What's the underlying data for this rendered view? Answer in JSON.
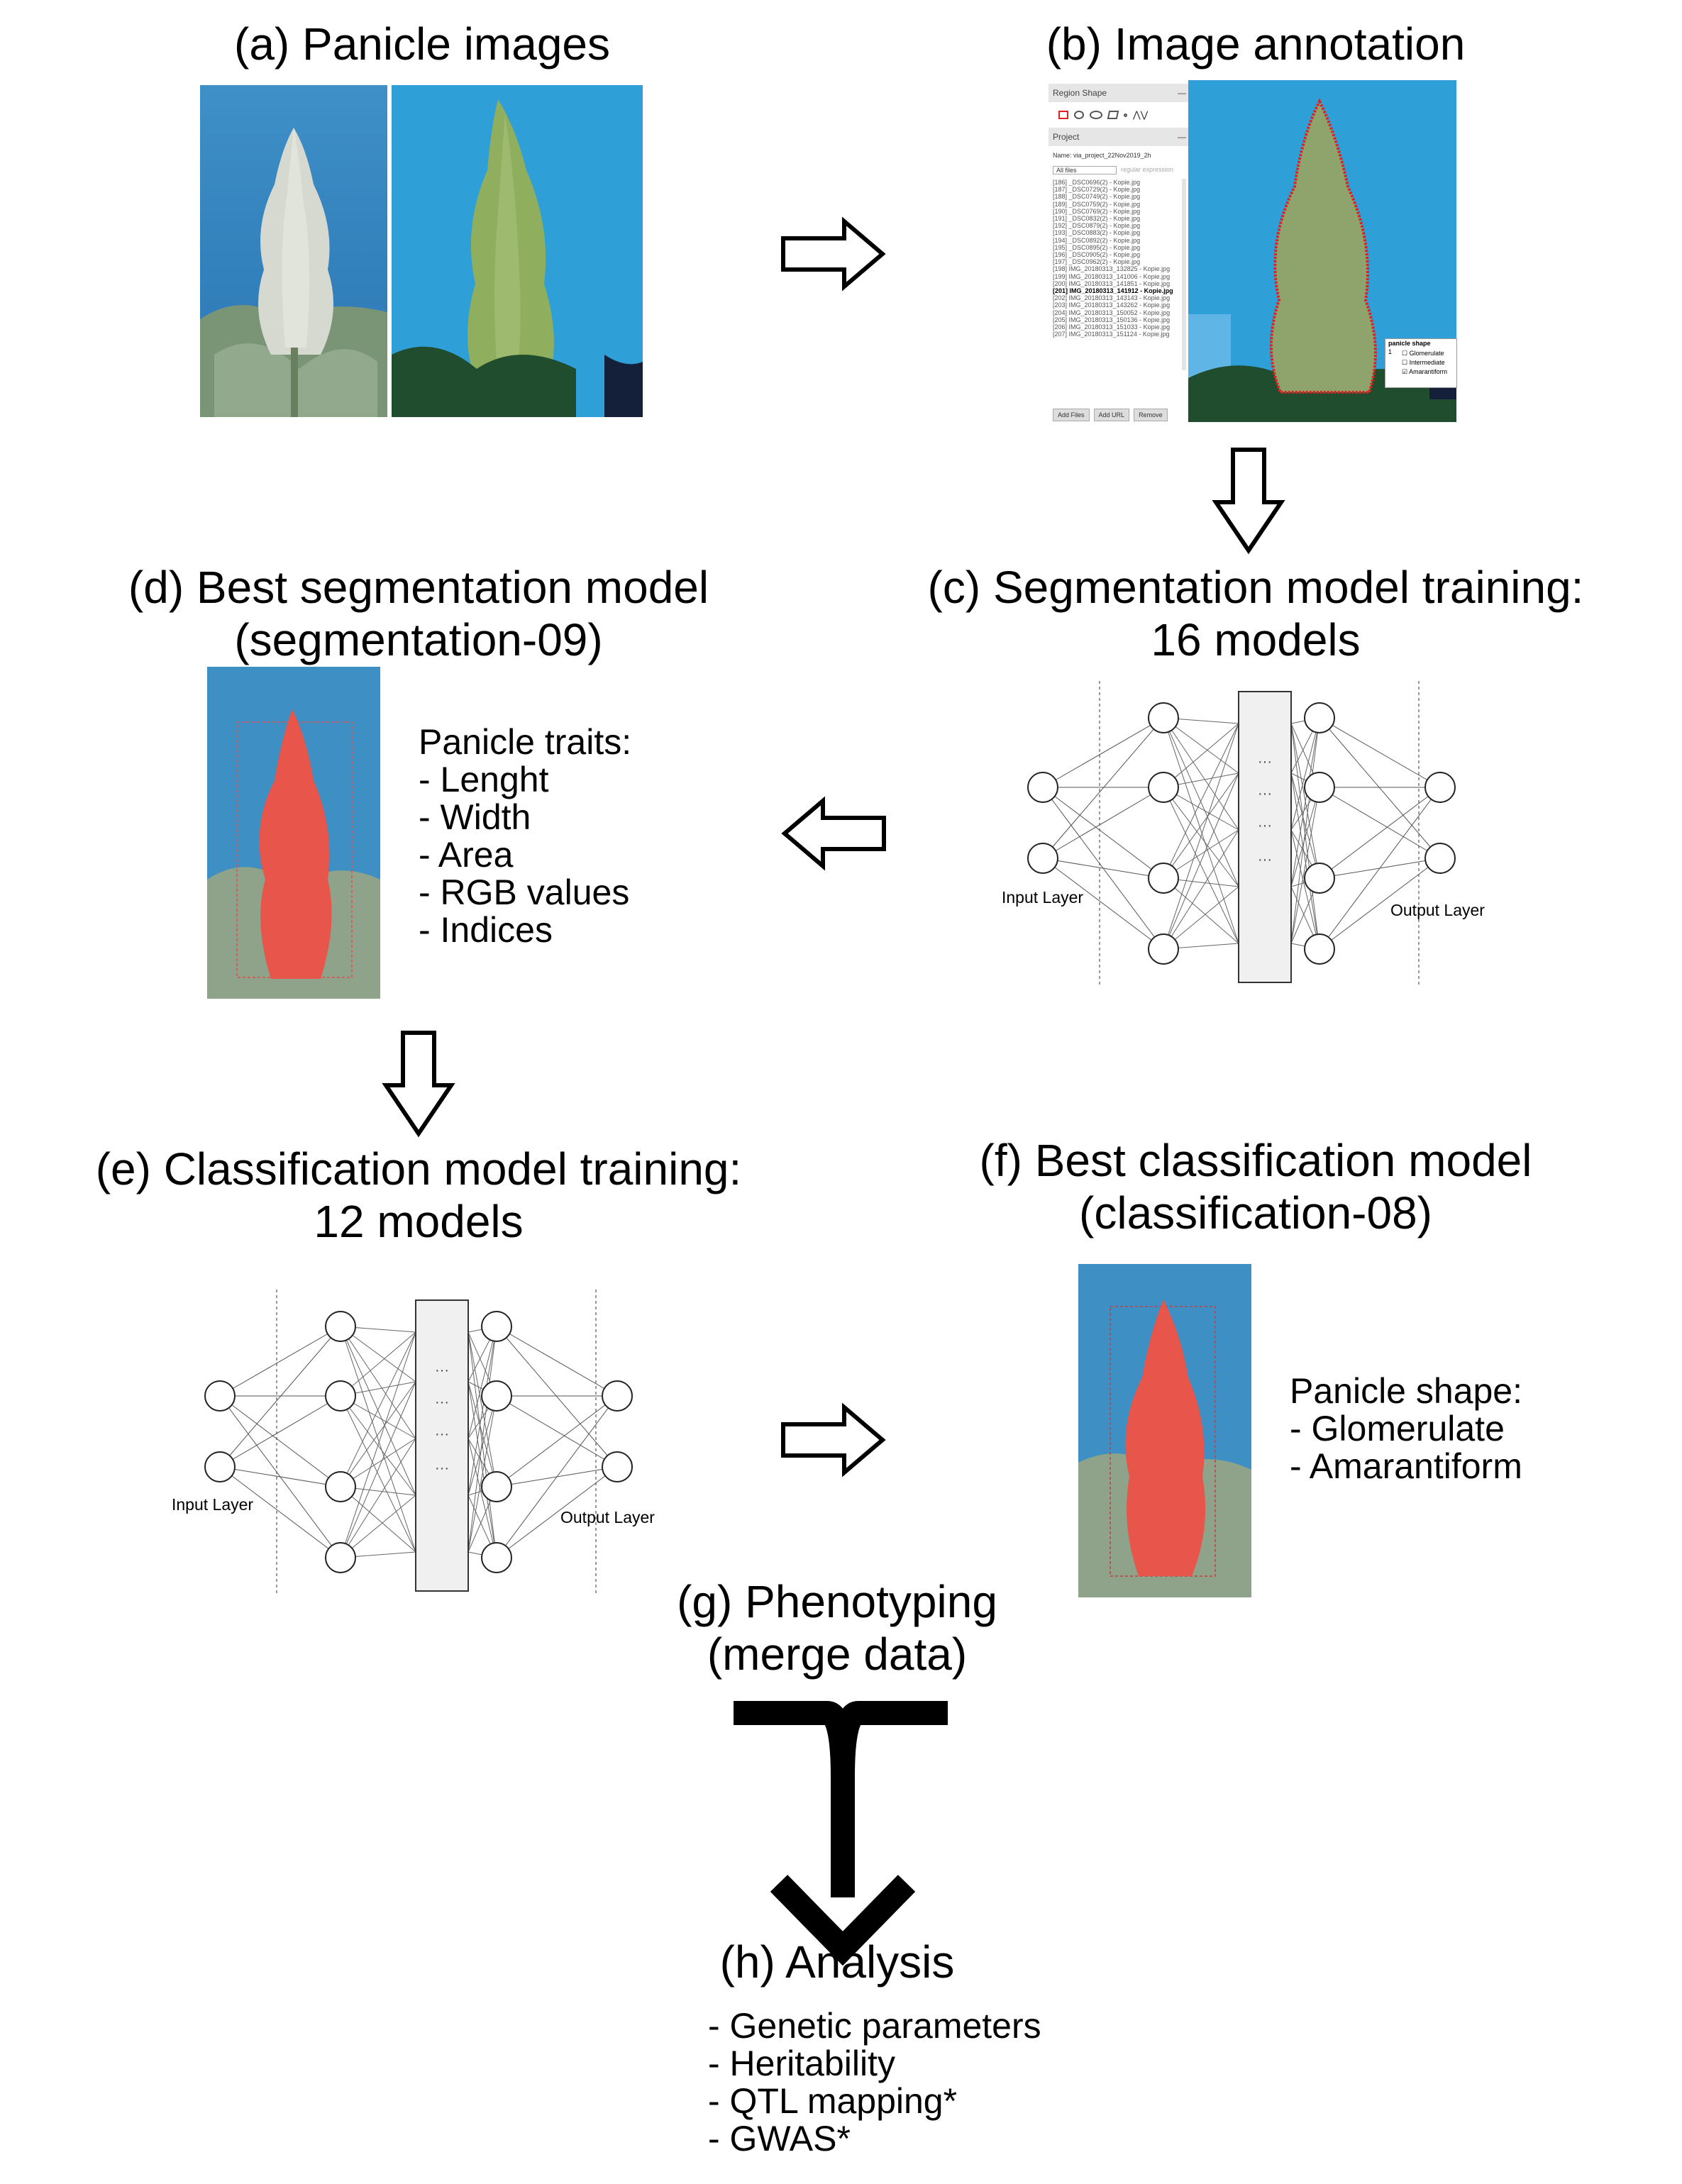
{
  "panels": {
    "a": {
      "title": "(a) Panicle images"
    },
    "b": {
      "title": "(b) Image annotation",
      "tool": {
        "region_shape_label": "Region Shape",
        "project_label": "Project",
        "project_name_label": "Name:",
        "project_name": "via_project_22Nov2019_2h",
        "filter_label": "All files",
        "regex_placeholder": "regular expression",
        "files": [
          "[186] _DSC0696(2) - Kopie.jpg",
          "[187] _DSC0729(2) - Kopie.jpg",
          "[188] _DSC0749(2) - Kopie.jpg",
          "[189] _DSC0759(2) - Kopie.jpg",
          "[190] _DSC0769(2) - Kopie.jpg",
          "[191] _DSC0832(2) - Kopie.jpg",
          "[192] _DSC0879(2) - Kopie.jpg",
          "[193] _DSC0883(2) - Kopie.jpg",
          "[194] _DSC0892(2) - Kopie.jpg",
          "[195] _DSC0895(2) - Kopie.jpg",
          "[196] _DSC0905(2) - Kopie.jpg",
          "[197] _DSC0962(2) - Kopie.jpg",
          "[198] IMG_20180313_132825 - Kopie.jpg",
          "[199] IMG_20180313_141006 - Kopie.jpg",
          "[200] IMG_20180313_141851 - Kopie.jpg",
          "[201] IMG_20180313_141912 - Kopie.jpg",
          "[202] IMG_20180313_143143 - Kopie.jpg",
          "[203] IMG_20180313_143262 - Kopie.jpg",
          "[204] IMG_20180313_150052 - Kopie.jpg",
          "[205] IMG_20180313_150136 - Kopie.jpg",
          "[206] IMG_20180313_151033 - Kopie.jpg",
          "[207] IMG_20180313_151124 - Kopie.jpg"
        ],
        "current_index": 15,
        "buttons": [
          "Add Files",
          "Add URL",
          "Remove"
        ],
        "attribute_header": "panicle shape",
        "attribute_row": "1",
        "attribute_options": [
          "Glomerulate",
          "Intermediate",
          "Amarantiform"
        ],
        "attribute_checked": "Amarantiform"
      }
    },
    "c": {
      "title_line1": "(c) Segmentation model training:",
      "title_line2": "16 models",
      "input_label": "Input Layer",
      "output_label": "Output Layer"
    },
    "d": {
      "title_line1": "(d) Best segmentation model",
      "title_line2": "(segmentation-09)",
      "traits_header": "Panicle traits:",
      "traits": [
        "- Lenght",
        "- Width",
        "- Area",
        "- RGB values",
        "- Indices"
      ]
    },
    "e": {
      "title_line1": "(e) Classification model training:",
      "title_line2": "12 models",
      "input_label": "Input Layer",
      "output_label": "Output Layer"
    },
    "f": {
      "title_line1": "(f) Best classification model",
      "title_line2": "(classification-08)",
      "shape_header": "Panicle shape:",
      "shapes": [
        "- Glomerulate",
        "- Amarantiform"
      ]
    },
    "g": {
      "title_line1": "(g) Phenotyping",
      "title_line2": "(merge data)"
    },
    "h": {
      "title": "(h) Analysis",
      "items": [
        "- Genetic parameters",
        "- Heritability",
        "- QTL mapping*",
        "- GWAS*"
      ]
    }
  },
  "nn_ellipsis": "···",
  "colors": {
    "sky": "#2f9fd8",
    "leaf": "#5f7f52",
    "panicle_white": "#d8dcd2",
    "panicle_green": "#8fae5e",
    "segmentation_mask": "#e8554a",
    "annotation_outline": "#e02020"
  }
}
